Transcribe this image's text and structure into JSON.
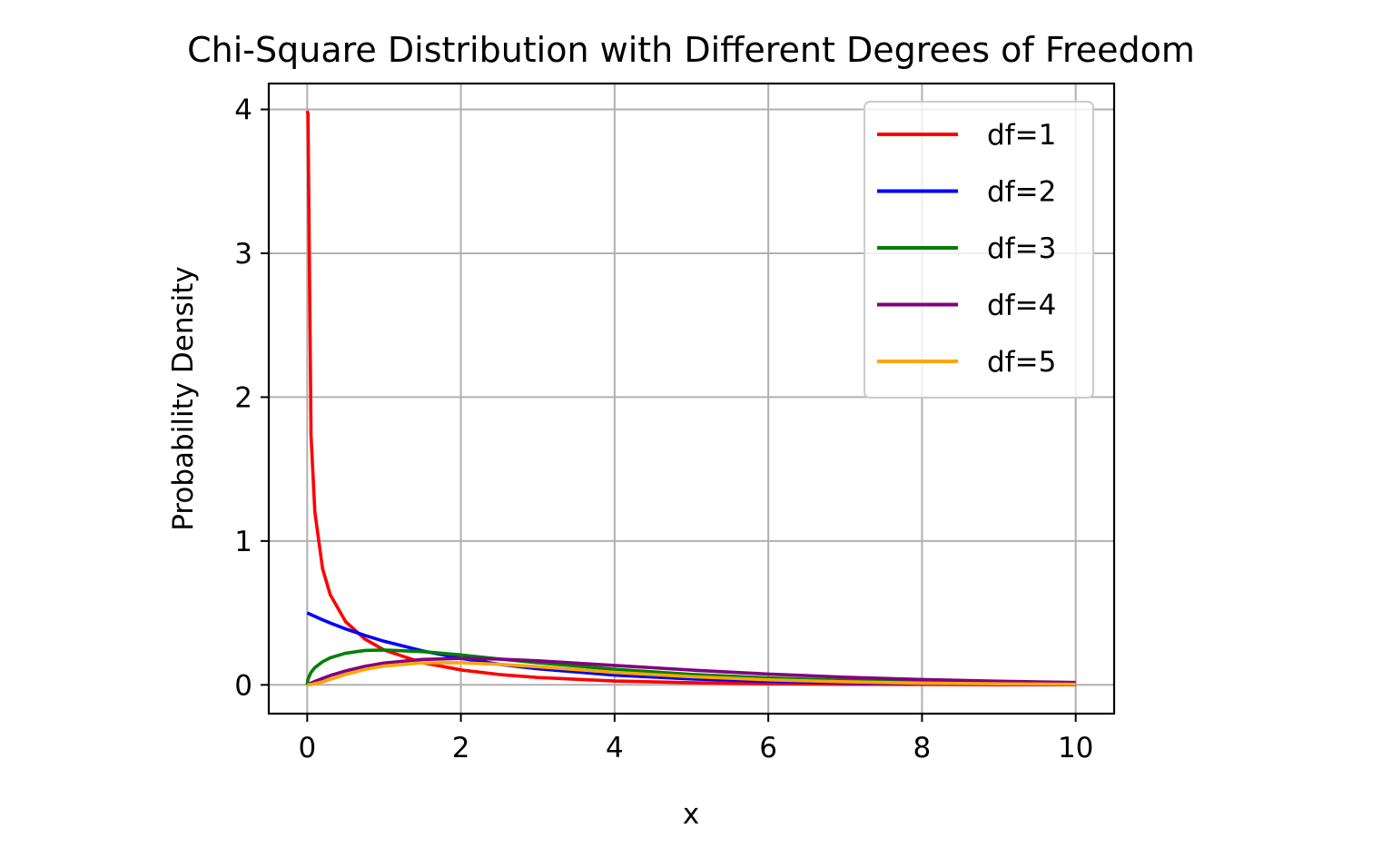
{
  "chart_data": {
    "type": "line",
    "title": "Chi-Square Distribution with Different Degrees of Freedom",
    "xlabel": "x",
    "ylabel": "Probability Density",
    "xlim": [
      -0.5,
      10.5
    ],
    "ylim": [
      -0.2,
      4.18
    ],
    "xticks": [
      0,
      2,
      4,
      6,
      8,
      10
    ],
    "yticks": [
      0,
      1,
      2,
      3,
      4
    ],
    "xtick_labels": [
      "0",
      "2",
      "4",
      "6",
      "8",
      "10"
    ],
    "ytick_labels": [
      "0",
      "1",
      "2",
      "3",
      "4"
    ],
    "grid": true,
    "legend_position": "top-right",
    "x": [
      0,
      0.01,
      0.05,
      0.1,
      0.2,
      0.3,
      0.5,
      0.75,
      1,
      1.5,
      2,
      2.5,
      3,
      4,
      5,
      6,
      7,
      8,
      9,
      10
    ],
    "series": [
      {
        "name": "df=1",
        "color": "#ff0000",
        "values": [
          3.99,
          3.97,
          1.733,
          1.2,
          0.807,
          0.627,
          0.439,
          0.319,
          0.242,
          0.154,
          0.104,
          0.072,
          0.051,
          0.027,
          0.015,
          0.008,
          0.004,
          0.003,
          0.001,
          0.001
        ]
      },
      {
        "name": "df=2",
        "color": "#0000ff",
        "values": [
          0.5,
          0.498,
          0.488,
          0.476,
          0.452,
          0.43,
          0.389,
          0.344,
          0.303,
          0.236,
          0.184,
          0.143,
          0.112,
          0.068,
          0.041,
          0.025,
          0.015,
          0.009,
          0.006,
          0.003
        ]
      },
      {
        "name": "df=3",
        "color": "#008000",
        "values": [
          0,
          0.04,
          0.087,
          0.12,
          0.161,
          0.188,
          0.22,
          0.239,
          0.242,
          0.231,
          0.208,
          0.18,
          0.154,
          0.108,
          0.073,
          0.048,
          0.031,
          0.02,
          0.012,
          0.008
        ]
      },
      {
        "name": "df=4",
        "color": "#800080",
        "values": [
          0,
          0.002,
          0.012,
          0.024,
          0.045,
          0.065,
          0.097,
          0.129,
          0.152,
          0.177,
          0.184,
          0.179,
          0.167,
          0.135,
          0.103,
          0.075,
          0.053,
          0.037,
          0.025,
          0.017
        ]
      },
      {
        "name": "df=5",
        "color": "#ffa500",
        "values": [
          0,
          0.0003,
          0.003,
          0.008,
          0.021,
          0.038,
          0.073,
          0.107,
          0.131,
          0.154,
          0.154,
          0.143,
          0.126,
          0.087,
          0.057,
          0.035,
          0.021,
          0.012,
          0.007,
          0.004
        ]
      }
    ]
  }
}
